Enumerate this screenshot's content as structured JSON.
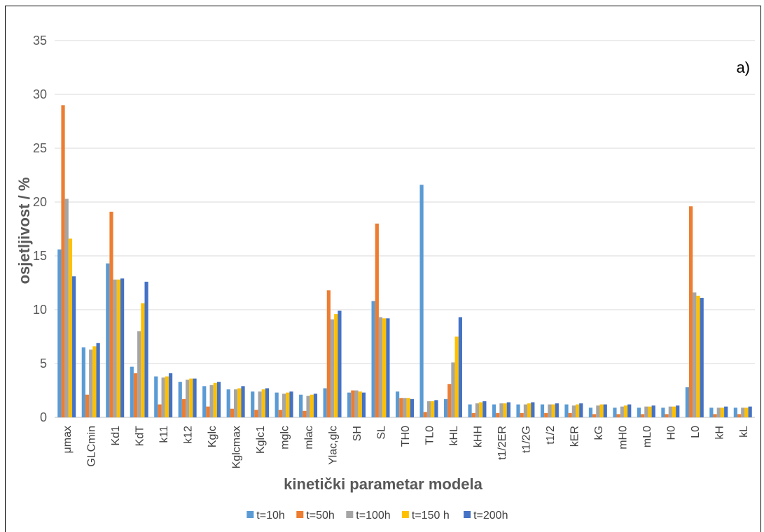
{
  "chart_data": {
    "type": "bar",
    "panel_label": "a)",
    "xlabel": "kinetički parametar modela",
    "ylabel": "osjetljivost / %",
    "ylim": [
      0,
      35
    ],
    "yticks": [
      "0",
      "5",
      "10",
      "15",
      "20",
      "25",
      "30",
      "35"
    ],
    "grid": true,
    "legend_position": "bottom",
    "categories": [
      "μmax",
      "GLCmin",
      "Kd1",
      "KdT",
      "k11",
      "k12",
      "Kglc",
      "Kglcmax",
      "Kglc1",
      "mglc",
      "mlac",
      "Ylac,glc",
      "SH",
      "SL",
      "TH0",
      "TL0",
      "kHL",
      "kHH",
      "t1/2ER",
      "t1/2G",
      "t1/2",
      "kER",
      "kG",
      "mH0",
      "mL0",
      "H0",
      "L0",
      "kH",
      "kL"
    ],
    "series": [
      {
        "name": "t=10h",
        "color": "#5B9BD5",
        "values": [
          15.6,
          6.5,
          14.3,
          4.7,
          3.8,
          3.3,
          2.9,
          2.6,
          2.4,
          2.3,
          2.1,
          2.7,
          2.3,
          10.8,
          2.4,
          21.6,
          1.7,
          1.2,
          1.2,
          1.2,
          1.2,
          1.2,
          0.9,
          0.9,
          0.9,
          0.9,
          2.8,
          0.9,
          0.9
        ]
      },
      {
        "name": "t=50h",
        "color": "#ED7D31",
        "values": [
          29.0,
          2.1,
          19.1,
          4.1,
          1.2,
          1.7,
          1.0,
          0.8,
          0.7,
          0.7,
          0.6,
          11.8,
          2.5,
          18.0,
          1.8,
          0.5,
          3.1,
          0.4,
          0.4,
          0.4,
          0.4,
          0.4,
          0.3,
          0.3,
          0.3,
          0.3,
          19.6,
          0.3,
          0.3
        ]
      },
      {
        "name": "t=100h",
        "color": "#A5A5A5",
        "values": [
          20.3,
          6.3,
          12.8,
          8.0,
          3.7,
          3.5,
          3.0,
          2.6,
          2.4,
          2.2,
          2.0,
          9.1,
          2.5,
          9.3,
          1.8,
          1.5,
          5.1,
          1.3,
          1.3,
          1.2,
          1.2,
          1.1,
          1.1,
          1.0,
          1.0,
          1.0,
          11.6,
          0.9,
          0.9
        ]
      },
      {
        "name": "t=150 h",
        "color": "#FFC000",
        "values": [
          16.6,
          6.6,
          12.8,
          10.6,
          3.8,
          3.6,
          3.2,
          2.7,
          2.6,
          2.3,
          2.1,
          9.6,
          2.4,
          9.2,
          1.8,
          1.5,
          7.5,
          1.4,
          1.3,
          1.3,
          1.2,
          1.2,
          1.2,
          1.1,
          1.0,
          1.0,
          11.3,
          0.9,
          0.9
        ]
      },
      {
        "name": "t=200h",
        "color": "#4472C4",
        "values": [
          13.1,
          6.9,
          12.9,
          12.6,
          4.1,
          3.6,
          3.3,
          2.9,
          2.7,
          2.4,
          2.2,
          9.9,
          2.3,
          9.2,
          1.7,
          1.6,
          9.3,
          1.5,
          1.4,
          1.4,
          1.3,
          1.3,
          1.2,
          1.2,
          1.1,
          1.1,
          11.1,
          1.0,
          1.0
        ]
      }
    ]
  }
}
